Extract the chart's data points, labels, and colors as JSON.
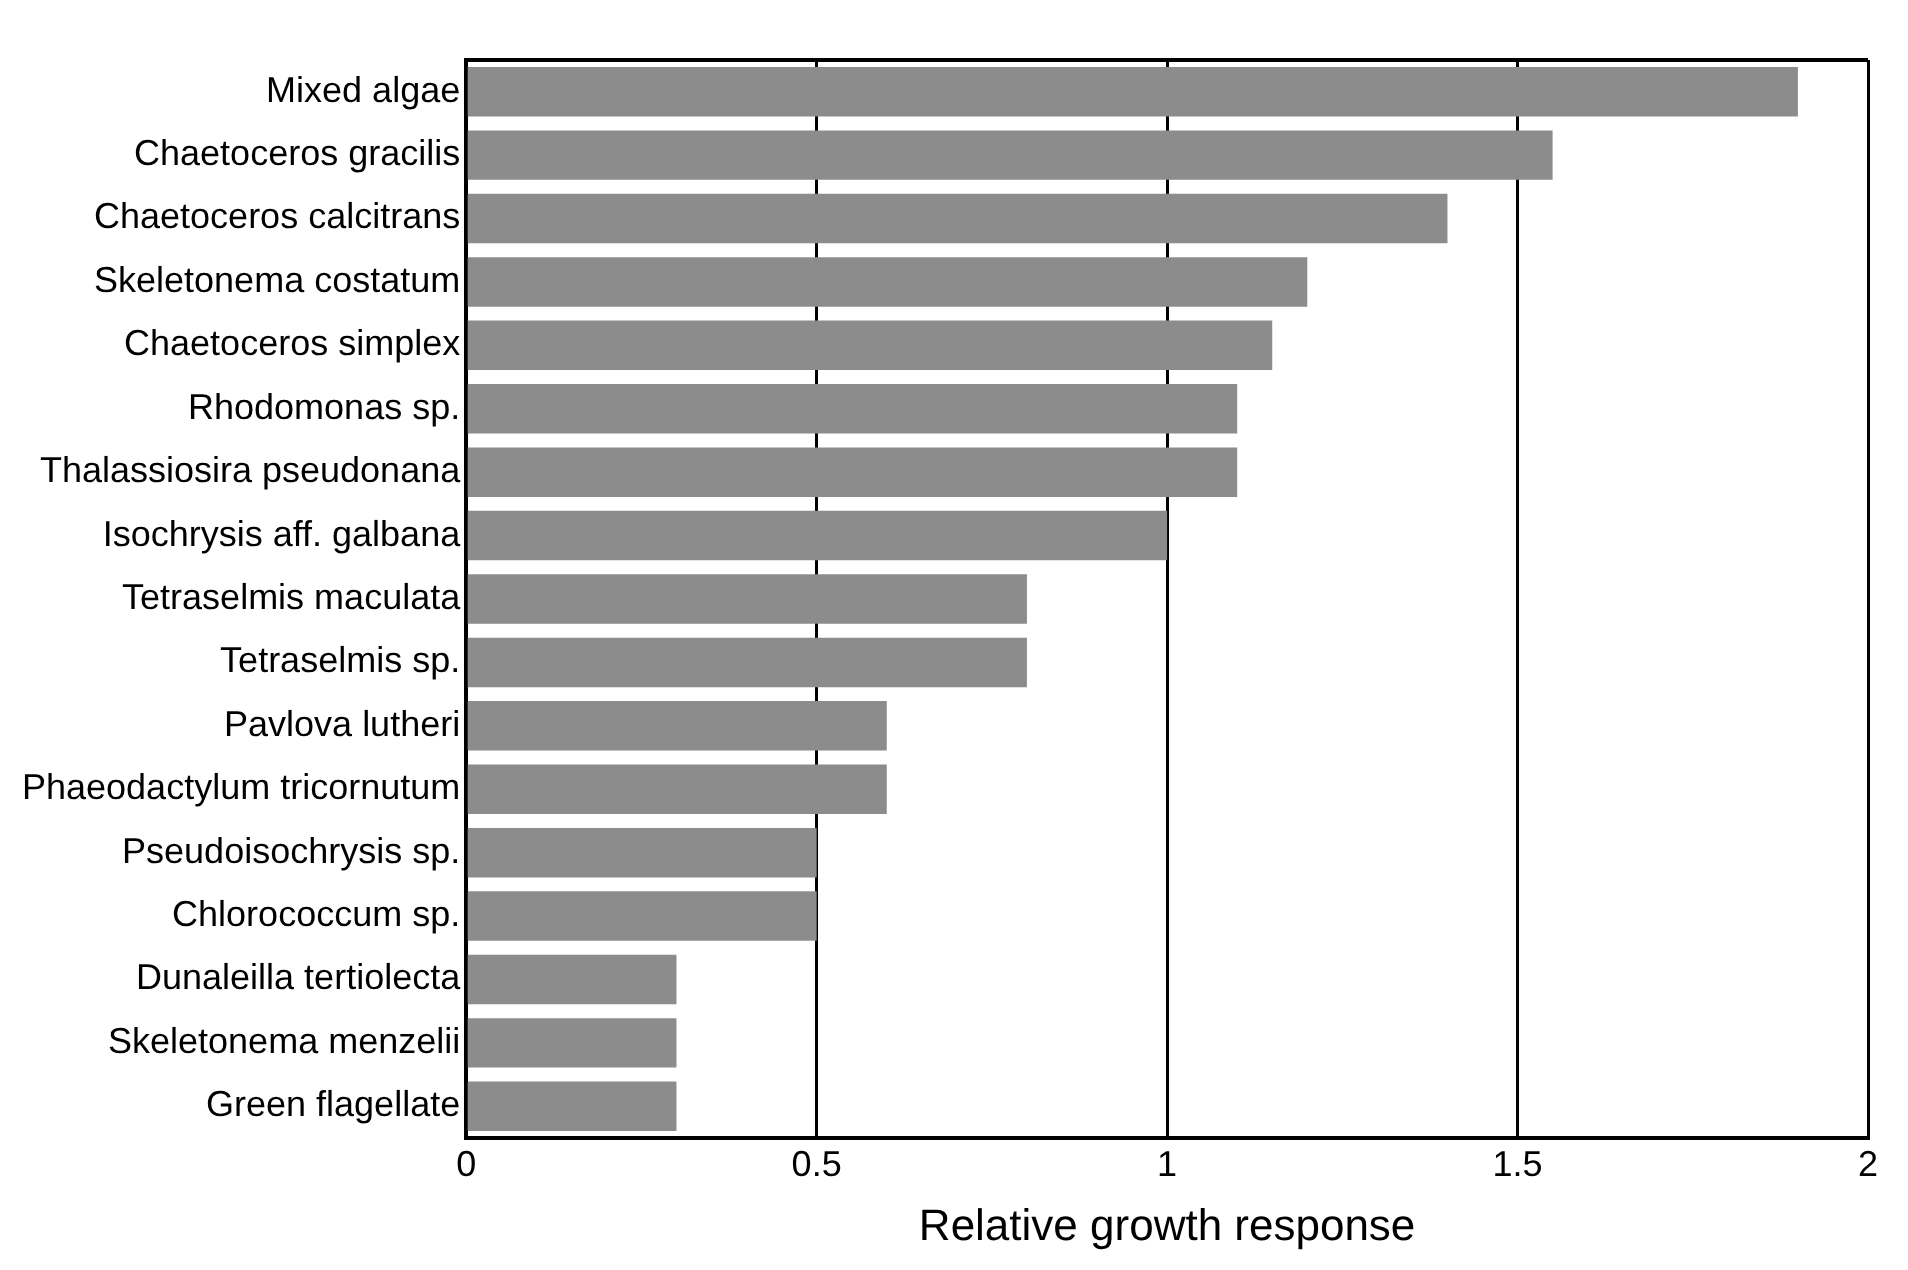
{
  "chart_data": {
    "type": "bar",
    "orientation": "horizontal",
    "xlabel": "Relative growth response",
    "categories": [
      "Mixed algae",
      "Chaetoceros gracilis",
      "Chaetoceros calcitrans",
      "Skeletonema costatum",
      "Chaetoceros simplex",
      "Rhodomonas sp.",
      "Thalassiosira pseudonana",
      "Isochrysis aff. galbana",
      "Tetraselmis maculata",
      "Tetraselmis sp.",
      "Pavlova lutheri",
      "Phaeodactylum tricornutum",
      "Pseudoisochrysis sp.",
      "Chlorococcum sp.",
      "Dunaleilla tertiolecta",
      "Skeletonema menzelii",
      "Green flagellate"
    ],
    "values": [
      1.9,
      1.55,
      1.4,
      1.2,
      1.15,
      1.1,
      1.1,
      1.0,
      0.8,
      0.8,
      0.6,
      0.6,
      0.5,
      0.5,
      0.3,
      0.3,
      0.3
    ],
    "color": "#8c8c8c",
    "xlim": [
      0,
      2
    ],
    "xticks": [
      0,
      0.5,
      1,
      1.5,
      2
    ],
    "grid": "x",
    "legend": false
  }
}
